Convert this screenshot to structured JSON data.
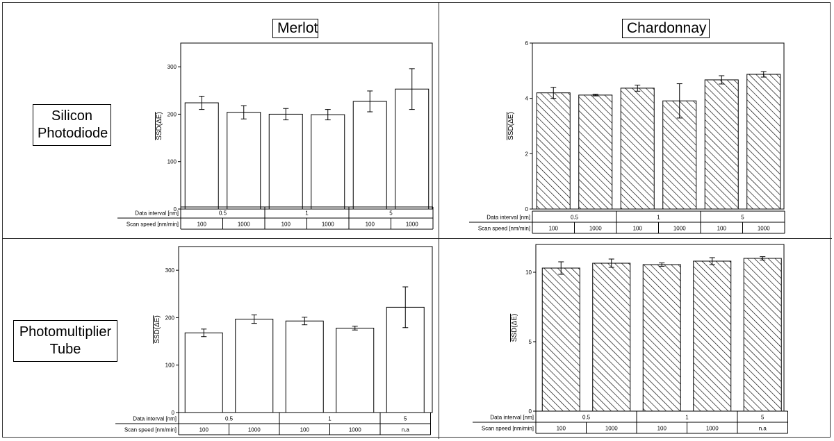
{
  "titles": {
    "left": "Merlot",
    "right": "Chardonnay"
  },
  "row_labels": {
    "top": [
      "Silicon",
      "Photodiode"
    ],
    "bottom": [
      "Photomultiplier",
      "Tube"
    ]
  },
  "table_labels": {
    "row1": "Data interval [nm]",
    "row2": "Scan speed [nm/min]"
  },
  "y_label": "SSD(ΔE)",
  "colors": {
    "bar_fill": "#ffffff",
    "hatch": "#000000",
    "stroke": "#000000"
  },
  "chart_data": [
    {
      "type": "bar",
      "id": "merlot-silicon",
      "hatched": false,
      "categories": [
        "0.5 / 100",
        "0.5 / 1000",
        "1 / 100",
        "1 / 1000",
        "5 / 100",
        "5 / 1000"
      ],
      "values": [
        224,
        204,
        200,
        199,
        227,
        253
      ],
      "errors": [
        14,
        14,
        12,
        11,
        22,
        43
      ],
      "ylim": [
        0,
        350
      ],
      "yticks": [
        0,
        100,
        200,
        300
      ],
      "data_interval": [
        {
          "label": "0.5",
          "span": 2
        },
        {
          "label": "1",
          "span": 2
        },
        {
          "label": "5",
          "span": 2
        }
      ],
      "scan_speed": [
        "100",
        "1000",
        "100",
        "1000",
        "100",
        "1000"
      ]
    },
    {
      "type": "bar",
      "id": "chardonnay-silicon",
      "hatched": true,
      "categories": [
        "0.5 / 100",
        "0.5 / 1000",
        "1 / 100",
        "1 / 1000",
        "5 / 100",
        "5 / 1000"
      ],
      "values": [
        4.2,
        4.12,
        4.37,
        3.91,
        4.67,
        4.87
      ],
      "errors": [
        0.2,
        0.03,
        0.11,
        0.62,
        0.15,
        0.1
      ],
      "ylim": [
        0,
        6
      ],
      "yticks": [
        0,
        2,
        4,
        6
      ],
      "data_interval": [
        {
          "label": "0.5",
          "span": 2
        },
        {
          "label": "1",
          "span": 2
        },
        {
          "label": "5",
          "span": 2
        }
      ],
      "scan_speed": [
        "100",
        "1000",
        "100",
        "1000",
        "100",
        "1000"
      ]
    },
    {
      "type": "bar",
      "id": "merlot-pmt",
      "hatched": false,
      "categories": [
        "0.5 / 100",
        "0.5 / 1000",
        "1 / 100",
        "1 / 1000",
        "5 / n.a"
      ],
      "values": [
        168,
        197,
        193,
        178,
        222
      ],
      "errors": [
        8,
        9,
        8,
        4,
        43
      ],
      "ylim": [
        0,
        350
      ],
      "yticks": [
        0,
        100,
        200,
        300
      ],
      "data_interval": [
        {
          "label": "0.5",
          "span": 2
        },
        {
          "label": "1",
          "span": 2
        },
        {
          "label": "5",
          "span": 1
        }
      ],
      "scan_speed": [
        "100",
        "1000",
        "100",
        "1000",
        "n.a"
      ]
    },
    {
      "type": "bar",
      "id": "chardonnay-pmt",
      "hatched": true,
      "categories": [
        "0.5 / 100",
        "0.5 / 1000",
        "1 / 100",
        "1 / 1000",
        "5 / n.a"
      ],
      "values": [
        10.3,
        10.65,
        10.55,
        10.8,
        11.0
      ],
      "errors": [
        0.45,
        0.3,
        0.12,
        0.25,
        0.12
      ],
      "ylim": [
        0,
        12
      ],
      "yticks": [
        0,
        5,
        10
      ],
      "data_interval": [
        {
          "label": "0.5",
          "span": 2
        },
        {
          "label": "1",
          "span": 2
        },
        {
          "label": "5",
          "span": 1
        }
      ],
      "scan_speed": [
        "100",
        "1000",
        "100",
        "1000",
        "n.a"
      ]
    }
  ]
}
